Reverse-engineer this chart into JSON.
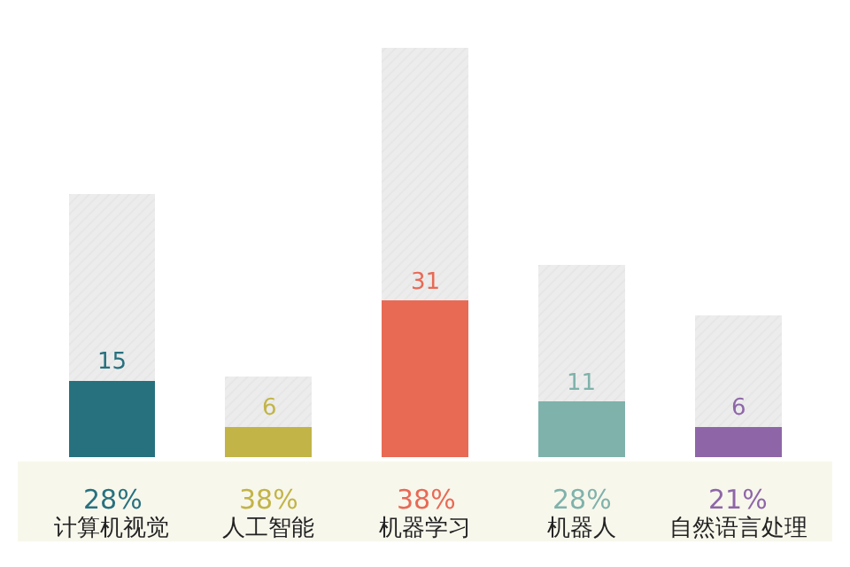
{
  "chart_data": {
    "type": "bar",
    "stacked": true,
    "categories": [
      "计算机视觉",
      "人工智能",
      "机器学习",
      "机器人",
      "自然语言处理"
    ],
    "series": [
      {
        "values": [
          15,
          6,
          31,
          11,
          6
        ],
        "value_labels": [
          "15",
          "6",
          "31",
          "11",
          "6"
        ],
        "colors": [
          "#27717f",
          "#c2b447",
          "#e86a55",
          "#7fb2ab",
          "#8e66a8"
        ]
      },
      {
        "color": "#ececec",
        "values": [
          37,
          10,
          50,
          27,
          22
        ]
      }
    ],
    "annotations": [
      "28%",
      "38%",
      "38%",
      "28%",
      "21%"
    ]
  }
}
